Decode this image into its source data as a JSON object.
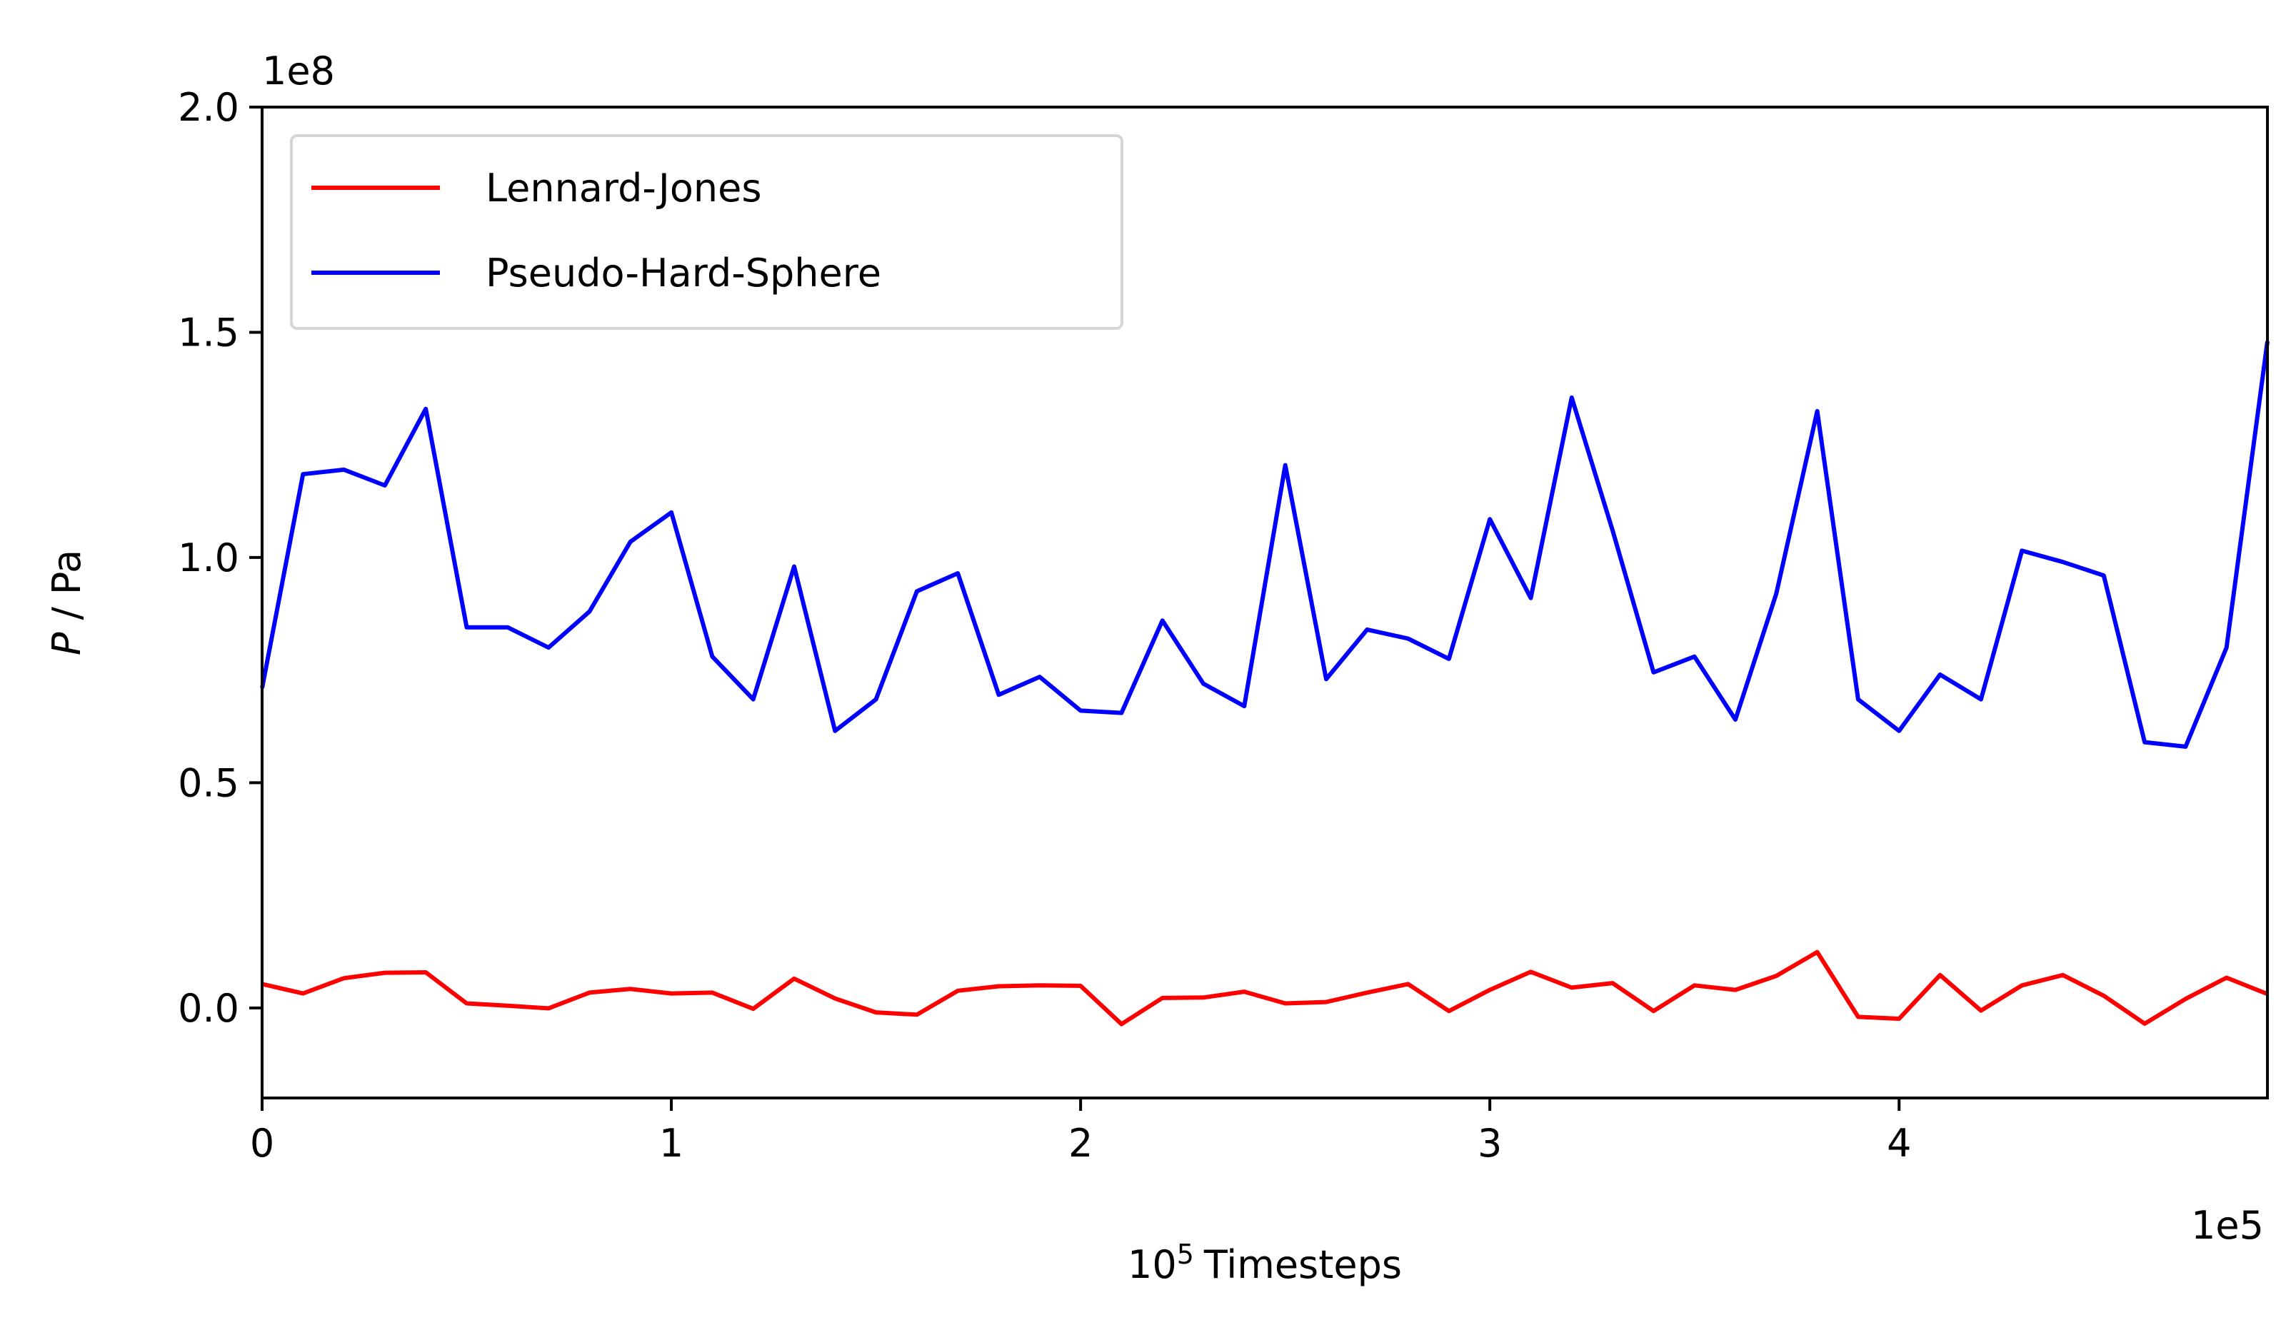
{
  "chart_data": {
    "type": "line",
    "xlabel_base": "10",
    "xlabel_exp": "5",
    "xlabel_text": "Timesteps",
    "ylabel_italic": "P",
    "ylabel_rest": " / Pa",
    "x_offset_text": "1e5",
    "y_offset_text": "1e8",
    "xlim": [
      0,
      4.9
    ],
    "ylim": [
      -0.2,
      2.0
    ],
    "x_ticks": [
      0,
      1,
      2,
      3,
      4
    ],
    "x_tick_labels": [
      "0",
      "1",
      "2",
      "3",
      "4"
    ],
    "y_ticks": [
      0.0,
      0.5,
      1.0,
      1.5,
      2.0
    ],
    "y_tick_labels": [
      "0.0",
      "0.5",
      "1.0",
      "1.5",
      "2.0"
    ],
    "grid": false,
    "legend_position": "upper-left",
    "x": [
      0,
      0.1,
      0.2,
      0.3,
      0.4,
      0.5,
      0.6,
      0.7,
      0.8,
      0.9,
      1.0,
      1.1,
      1.2,
      1.3,
      1.4,
      1.5,
      1.6,
      1.7,
      1.8,
      1.9,
      2.0,
      2.1,
      2.2,
      2.3,
      2.4,
      2.5,
      2.6,
      2.7,
      2.8,
      2.9,
      3.0,
      3.1,
      3.2,
      3.3,
      3.4,
      3.5,
      3.6,
      3.7,
      3.8,
      3.9,
      4.0,
      4.1,
      4.2,
      4.3,
      4.4,
      4.5,
      4.6,
      4.7,
      4.8,
      4.9
    ],
    "series": [
      {
        "name": "Lennard-Jones",
        "color": "#ff0000",
        "values": [
          0.053,
          0.032,
          0.066,
          0.078,
          0.079,
          0.01,
          0.005,
          -0.001,
          0.034,
          0.042,
          0.032,
          0.034,
          -0.002,
          0.065,
          0.021,
          -0.01,
          -0.015,
          0.038,
          0.048,
          0.05,
          0.049,
          -0.036,
          0.022,
          0.023,
          0.036,
          0.01,
          0.013,
          0.034,
          0.053,
          -0.007,
          0.04,
          0.08,
          0.045,
          0.055,
          -0.007,
          0.05,
          0.04,
          0.071,
          0.124,
          -0.02,
          -0.024,
          0.073,
          -0.006,
          0.05,
          0.073,
          0.027,
          -0.035,
          0.02,
          0.067,
          0.031
        ]
      },
      {
        "name": "Pseudo-Hard-Sphere",
        "color": "#0000ff",
        "values": [
          0.71,
          1.185,
          1.195,
          1.16,
          1.33,
          0.845,
          0.845,
          0.8,
          0.88,
          1.035,
          1.1,
          0.78,
          0.685,
          0.98,
          0.615,
          0.685,
          0.925,
          0.965,
          0.695,
          0.735,
          0.66,
          0.655,
          0.86,
          0.72,
          0.67,
          1.205,
          0.73,
          0.84,
          0.82,
          0.775,
          1.085,
          0.91,
          1.355,
          1.06,
          0.745,
          0.78,
          0.64,
          0.92,
          1.325,
          0.685,
          0.615,
          0.74,
          0.685,
          1.015,
          0.99,
          0.96,
          0.59,
          0.58,
          0.8,
          1.48
        ]
      }
    ]
  }
}
